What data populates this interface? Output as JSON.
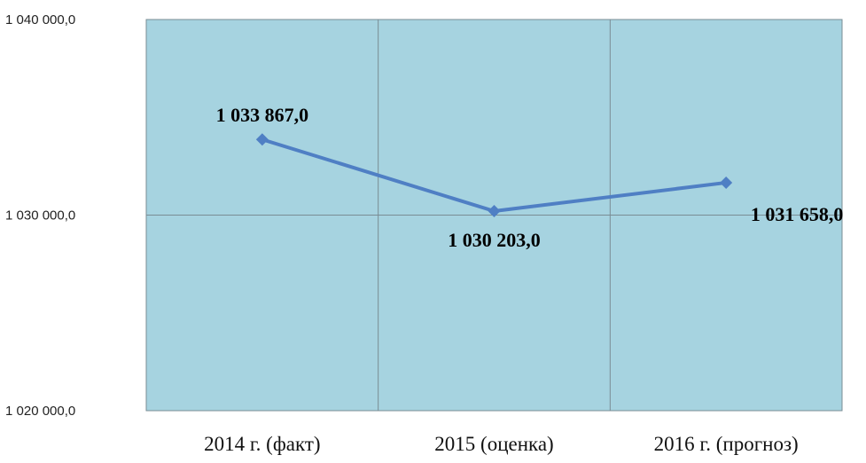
{
  "colors": {
    "plot_background": "#a6d3e0",
    "series_line": "#4f7fc4",
    "grid": "#7a8c94"
  },
  "chart_data": {
    "type": "line",
    "categories": [
      "2014 г. (факт)",
      "2015 (оценка)",
      "2016 г. (прогноз)"
    ],
    "series": [
      {
        "values": [
          1033867.0,
          1030203.0,
          1031658.0
        ],
        "labels": [
          "1 033 867,0",
          "1 030 203,0",
          "1 031 658,0"
        ]
      }
    ],
    "yticks": [
      {
        "value": 1020000,
        "label": "1 020 000,0"
      },
      {
        "value": 1030000,
        "label": "1 030 000,0"
      },
      {
        "value": 1040000,
        "label": "1 040 000,0"
      }
    ],
    "ylim": [
      1020000,
      1040000
    ],
    "grid": true,
    "legend": "none",
    "marker": "diamond"
  }
}
